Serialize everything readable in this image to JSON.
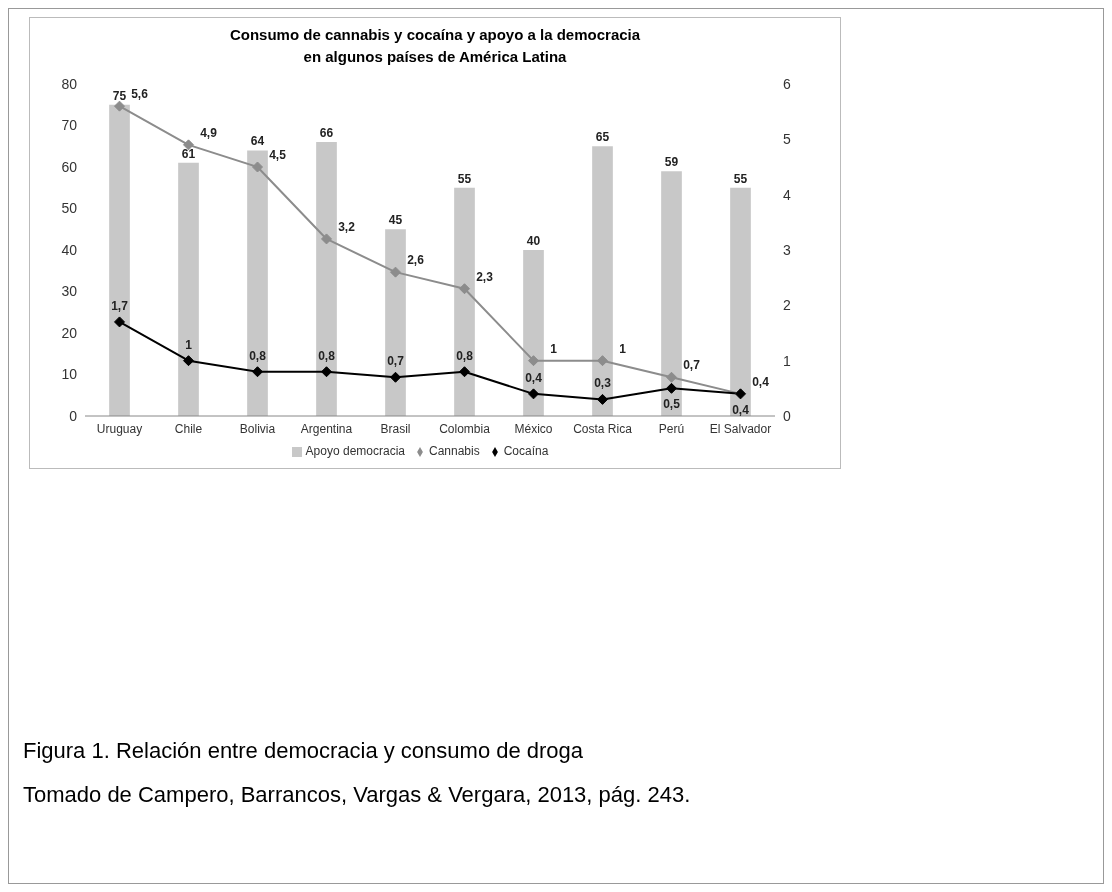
{
  "chart_data": {
    "type": "bar",
    "title": "Consumo de cannabis y cocaína y apoyo a la democracia\nen algunos países de América Latina",
    "categories": [
      "Uruguay",
      "Chile",
      "Bolivia",
      "Argentina",
      "Brasil",
      "Colombia",
      "México",
      "Costa Rica",
      "Perú",
      "El Salvador"
    ],
    "series": [
      {
        "name": "Apoyo democracia",
        "color": "#c8c8c8",
        "values": [
          75,
          61,
          64,
          66,
          45,
          55,
          40,
          65,
          59,
          55
        ],
        "value_labels": [
          "75",
          "61",
          "64",
          "66",
          "45",
          "55",
          "40",
          "65",
          "59",
          "55"
        ]
      },
      {
        "name": "Cannabis",
        "type": "line",
        "axis": "y2",
        "color": "#8c8c8c",
        "marker": "diamond",
        "values": [
          5.6,
          4.9,
          4.5,
          3.2,
          2.6,
          2.3,
          1,
          1,
          0.7,
          0.4
        ],
        "value_labels": [
          "5,6",
          "4,9",
          "4,5",
          "3,2",
          "2,6",
          "2,3",
          "1",
          "1",
          "0,7",
          "0,4"
        ]
      },
      {
        "name": "Cocaína",
        "type": "line",
        "axis": "y2",
        "color": "#000000",
        "marker": "diamond",
        "values": [
          1.7,
          1,
          0.8,
          0.8,
          0.7,
          0.8,
          0.4,
          0.3,
          0.5,
          0.4
        ],
        "value_labels": [
          "1,7",
          "1",
          "0,8",
          "0,8",
          "0,7",
          "0,8",
          "0,4",
          "0,3",
          "0,5",
          "0,4"
        ]
      }
    ],
    "ylim": [
      0,
      80
    ],
    "yticks": [
      0,
      10,
      20,
      30,
      40,
      50,
      60,
      70,
      80
    ],
    "y2lim": [
      0,
      6
    ],
    "y2ticks": [
      0,
      1,
      2,
      3,
      4,
      5,
      6
    ],
    "grid": false,
    "legend": "bottom",
    "annotations": [
      "Figura 1. Relación entre democracia y consumo de droga",
      "Tomado de Campero, Barrancos, Vargas & Vergara, 2013, pág. 243."
    ]
  }
}
